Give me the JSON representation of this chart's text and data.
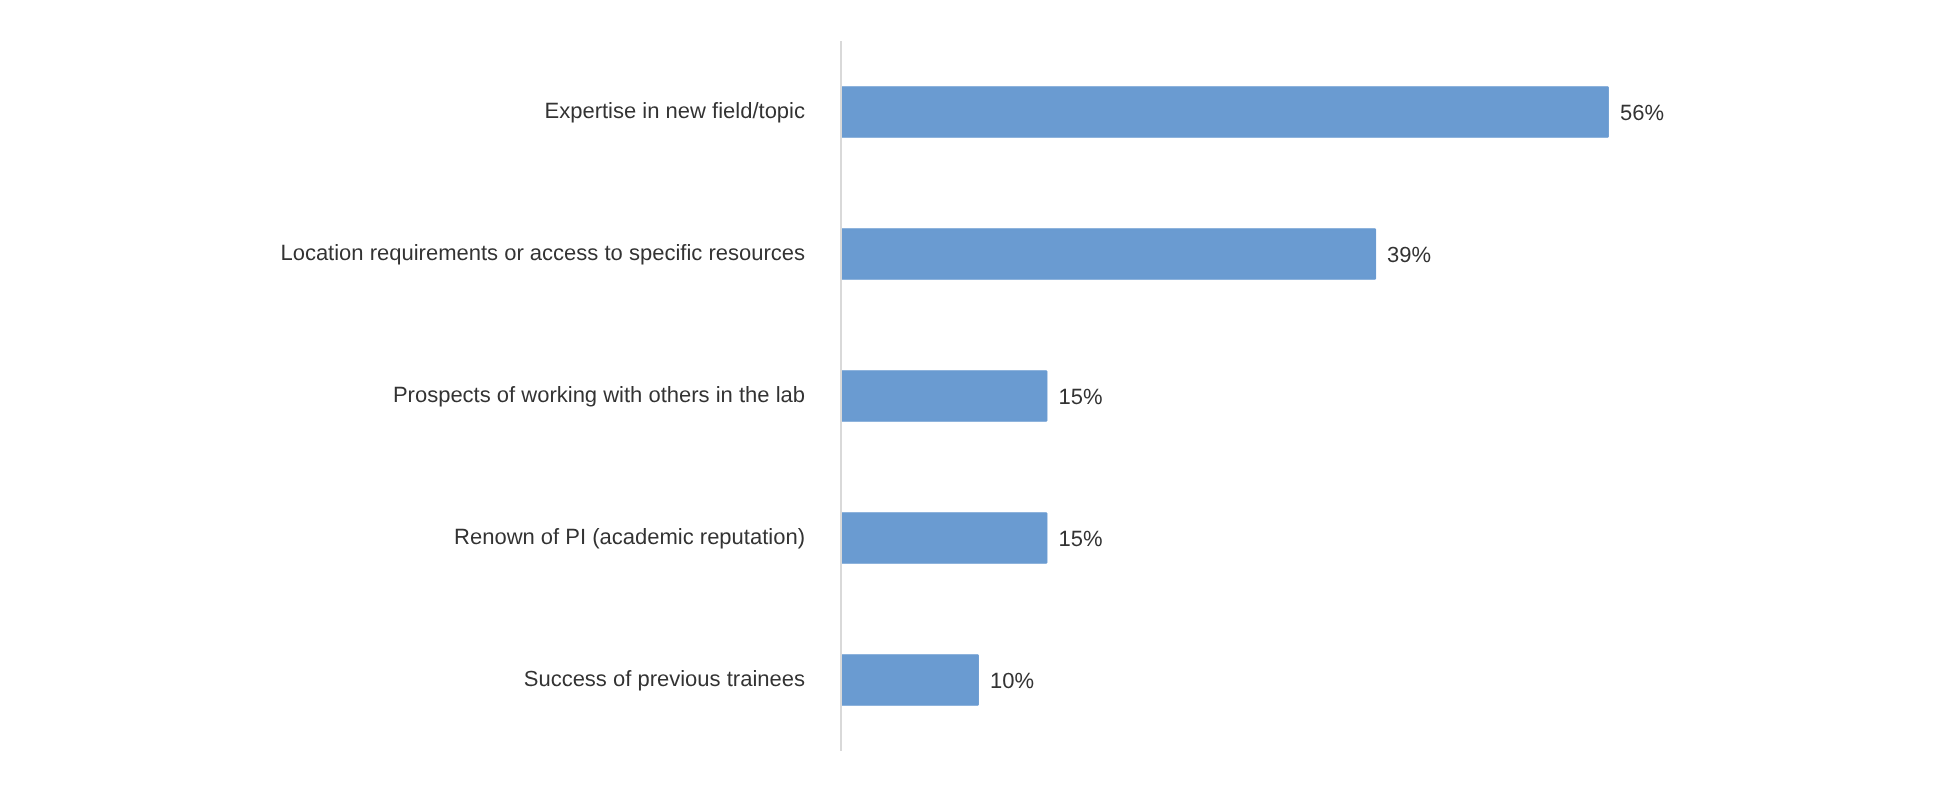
{
  "chart_data": {
    "type": "bar",
    "orientation": "horizontal",
    "categories": [
      "Expertise in new field/topic",
      "Location requirements or access to specific resources",
      "Prospects of working with others in the lab",
      "Renown of PI (academic reputation)",
      "Success of previous trainees"
    ],
    "values": [
      56,
      39,
      15,
      15,
      10
    ],
    "value_labels": [
      "56%",
      "39%",
      "15%",
      "15%",
      "10%"
    ],
    "color": "#6a9bd1",
    "tick_labels": "y"
  }
}
